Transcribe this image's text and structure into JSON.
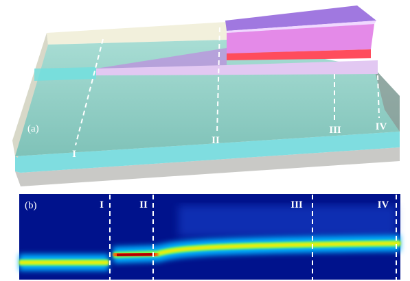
{
  "panel_a": {
    "label": "(a)",
    "sections": [
      "I",
      "II",
      "III",
      "IV"
    ]
  },
  "panel_b": {
    "label": "(b)",
    "sections": [
      "I",
      "II",
      "III",
      "IV"
    ]
  }
}
